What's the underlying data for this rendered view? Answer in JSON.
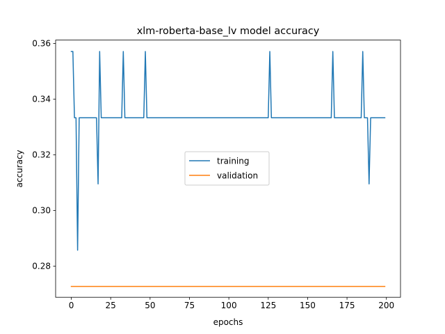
{
  "chart_data": {
    "type": "line",
    "title": "xlm-roberta-base_lv model accuracy",
    "xlabel": "epochs",
    "ylabel": "accuracy",
    "xlim": [
      -9.95,
      208.95
    ],
    "ylim": [
      0.2688,
      0.3612
    ],
    "x_ticks": [
      0,
      25,
      50,
      75,
      100,
      125,
      150,
      175,
      200
    ],
    "y_ticks": [
      0.28,
      0.3,
      0.32,
      0.34,
      0.36
    ],
    "y_tick_labels": [
      "0.28",
      "0.30",
      "0.32",
      "0.34",
      "0.36"
    ],
    "grid": false,
    "legend_position": "center",
    "series": [
      {
        "name": "training",
        "color": "#1f77b4",
        "points": [
          [
            0,
            0.3571
          ],
          [
            1,
            0.3571
          ],
          [
            2,
            0.3333
          ],
          [
            3,
            0.3333
          ],
          [
            4,
            0.2857
          ],
          [
            5,
            0.3333
          ],
          [
            16,
            0.3333
          ],
          [
            17,
            0.3095
          ],
          [
            18,
            0.3571
          ],
          [
            19,
            0.3333
          ],
          [
            32,
            0.3333
          ],
          [
            33,
            0.3571
          ],
          [
            34,
            0.3333
          ],
          [
            46,
            0.3333
          ],
          [
            47,
            0.3571
          ],
          [
            48,
            0.3333
          ],
          [
            125,
            0.3333
          ],
          [
            126,
            0.3571
          ],
          [
            127,
            0.3333
          ],
          [
            165,
            0.3333
          ],
          [
            166,
            0.3571
          ],
          [
            167,
            0.3333
          ],
          [
            184,
            0.3333
          ],
          [
            185,
            0.3571
          ],
          [
            186,
            0.3333
          ],
          [
            188,
            0.3333
          ],
          [
            189,
            0.3095
          ],
          [
            190,
            0.3333
          ],
          [
            199,
            0.3333
          ]
        ]
      },
      {
        "name": "validation",
        "color": "#ff7f0e",
        "points": [
          [
            0,
            0.2727
          ],
          [
            199,
            0.2727
          ]
        ]
      }
    ]
  }
}
